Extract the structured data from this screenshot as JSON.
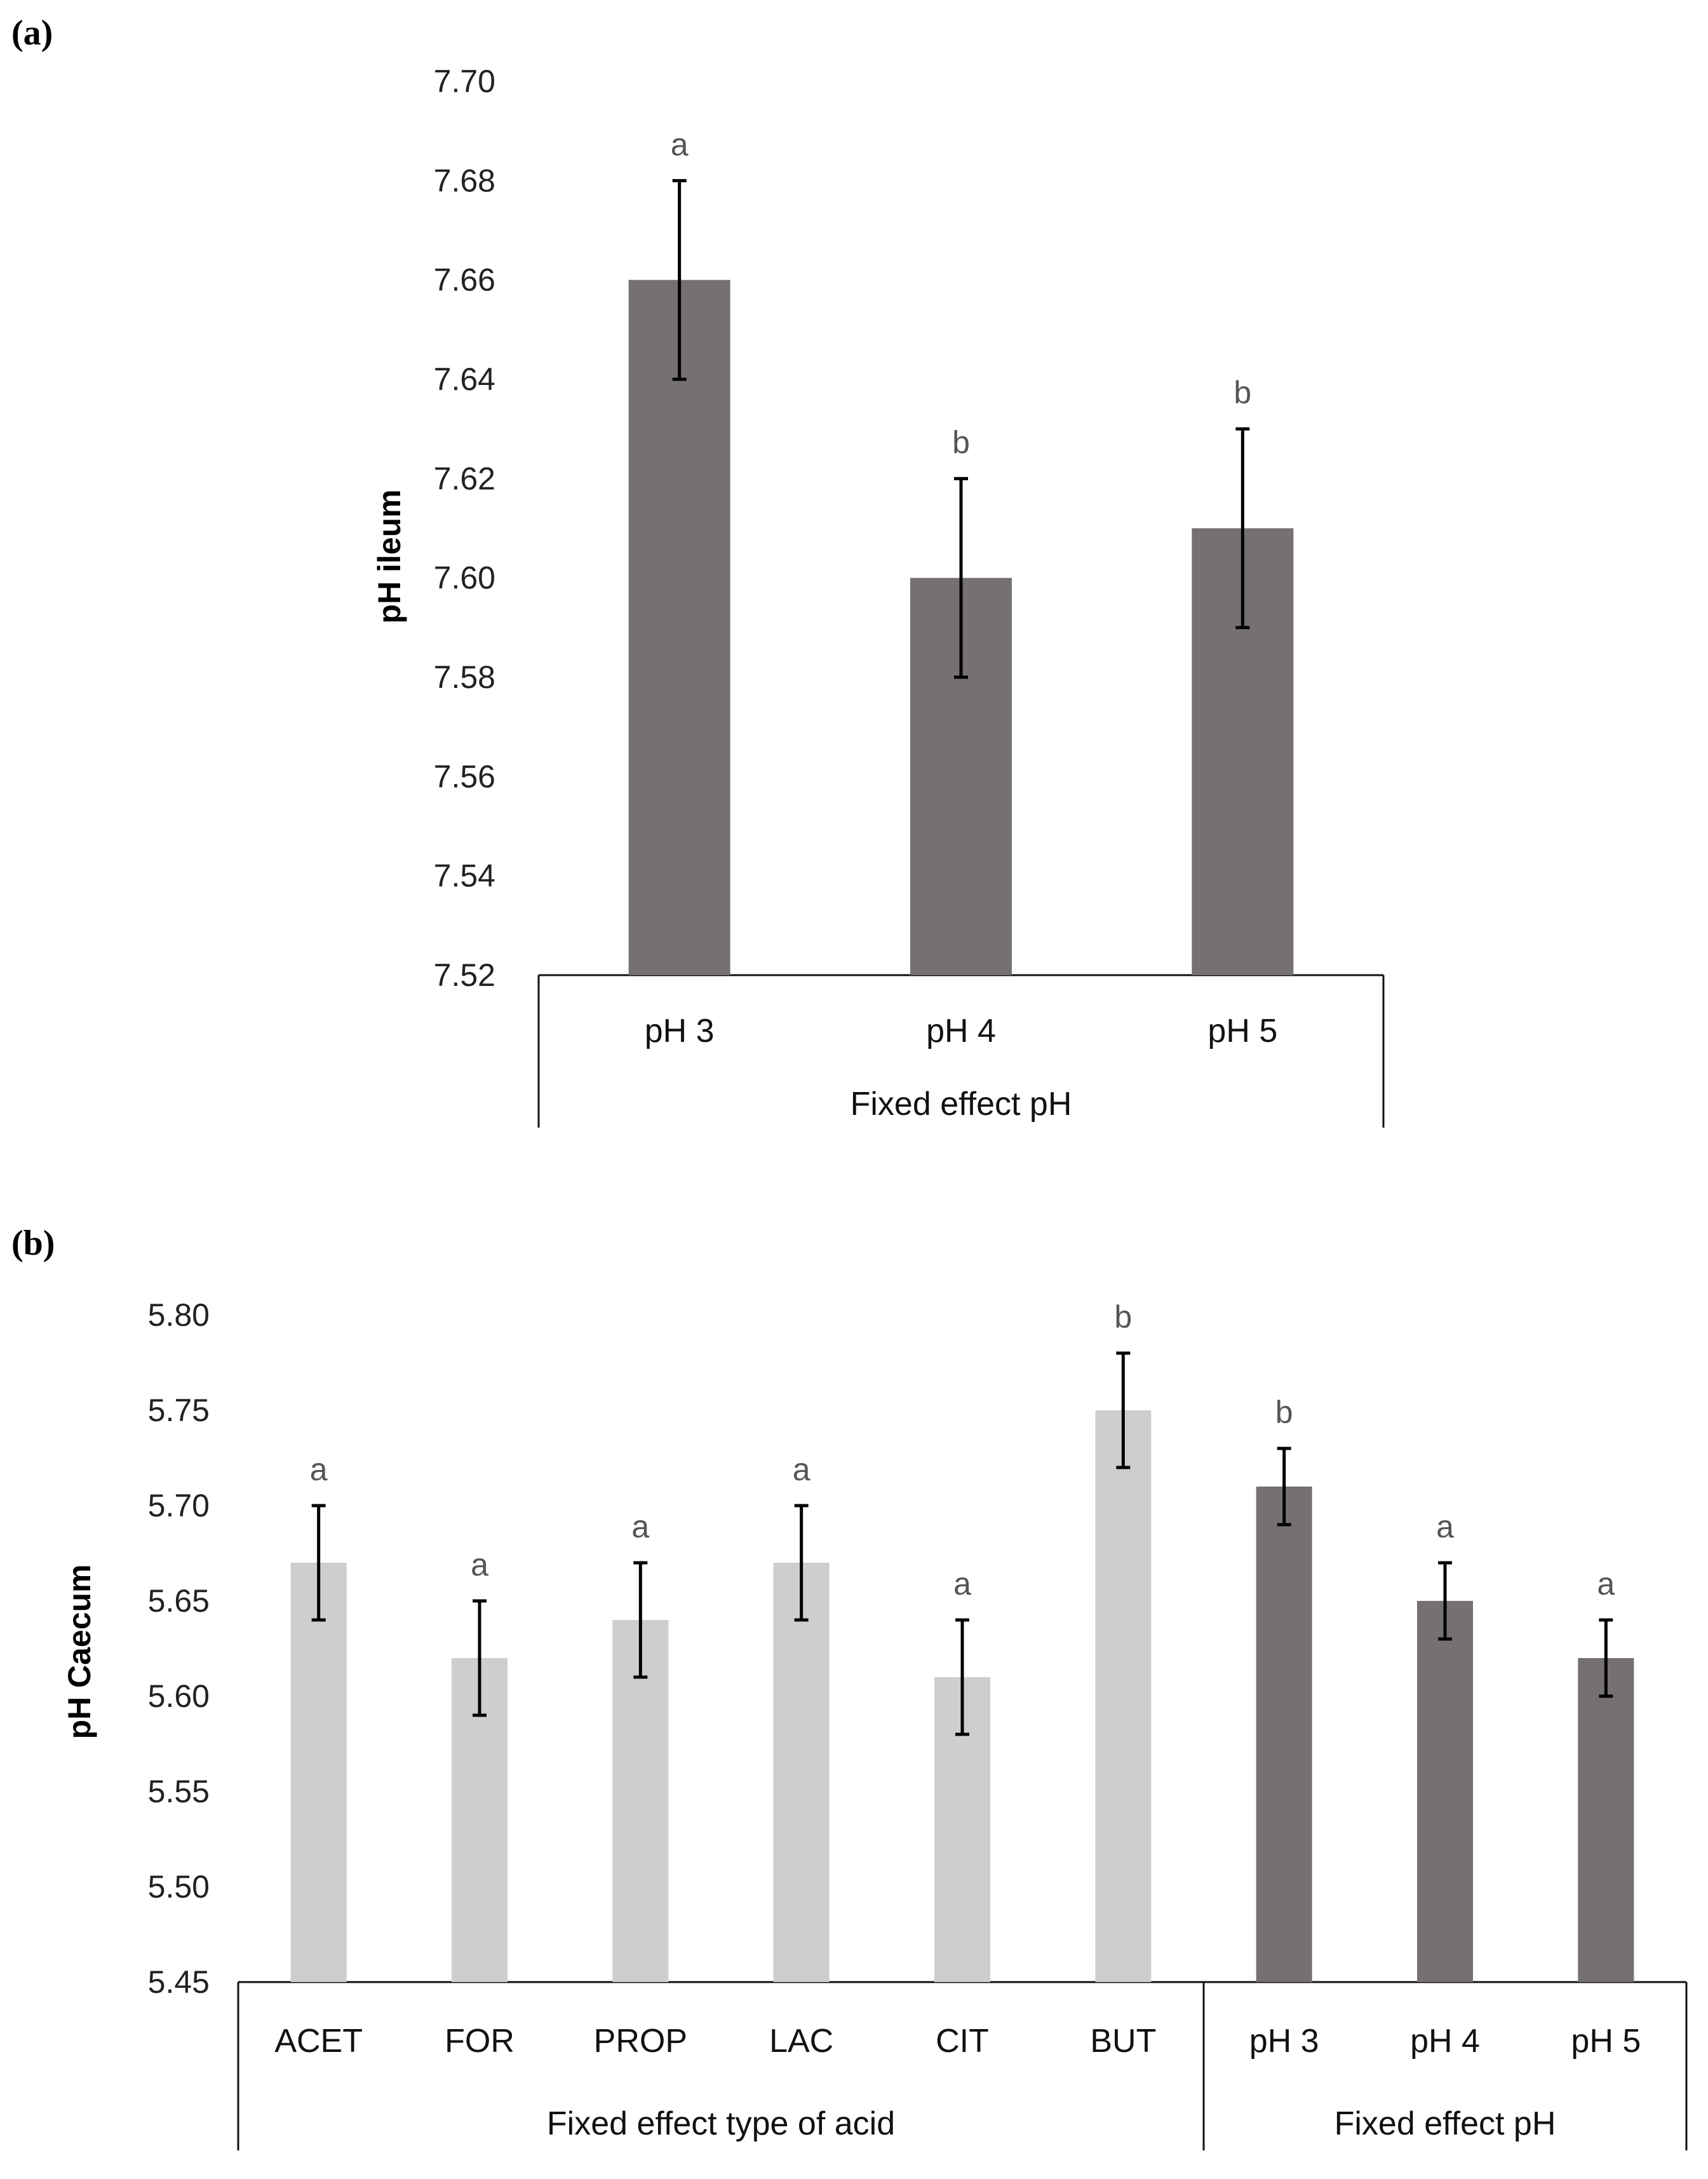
{
  "chart_data": [
    {
      "panel": "(a)",
      "type": "bar",
      "ylabel": "pH ileum",
      "ylim": [
        7.52,
        7.7
      ],
      "yticks": [
        "7.70",
        "7.68",
        "7.66",
        "7.64",
        "7.62",
        "7.60",
        "7.58",
        "7.56",
        "7.54",
        "7.52"
      ],
      "ytick_values": [
        7.7,
        7.68,
        7.66,
        7.64,
        7.62,
        7.6,
        7.58,
        7.56,
        7.54,
        7.52
      ],
      "groups": [
        {
          "label": "Fixed effect pH",
          "categories": [
            "pH 3",
            "pH 4",
            "pH 5"
          ]
        }
      ],
      "categories": [
        "pH 3",
        "pH 4",
        "pH 5"
      ],
      "values": [
        7.66,
        7.6,
        7.61
      ],
      "errors": [
        0.02,
        0.02,
        0.02
      ],
      "letters": [
        "a",
        "b",
        "b"
      ],
      "bar_colors": [
        "#767171",
        "#767171",
        "#767171"
      ]
    },
    {
      "panel": "(b)",
      "type": "bar",
      "ylabel": "pH Caecum",
      "ylim": [
        5.45,
        5.8
      ],
      "yticks": [
        "5.80",
        "5.75",
        "5.70",
        "5.65",
        "5.60",
        "5.55",
        "5.50",
        "5.45"
      ],
      "ytick_values": [
        5.8,
        5.75,
        5.7,
        5.65,
        5.6,
        5.55,
        5.5,
        5.45
      ],
      "groups": [
        {
          "label": "Fixed effect type of acid",
          "categories": [
            "ACET",
            "FOR",
            "PROP",
            "LAC",
            "CIT",
            "BUT"
          ]
        },
        {
          "label": "Fixed effect pH",
          "categories": [
            "pH 3",
            "pH 4",
            "pH 5"
          ]
        }
      ],
      "categories": [
        "ACET",
        "FOR",
        "PROP",
        "LAC",
        "CIT",
        "BUT",
        "pH 3",
        "pH 4",
        "pH 5"
      ],
      "values": [
        5.67,
        5.62,
        5.64,
        5.67,
        5.61,
        5.75,
        5.71,
        5.65,
        5.62
      ],
      "errors": [
        0.03,
        0.03,
        0.03,
        0.03,
        0.03,
        0.03,
        0.02,
        0.02,
        0.02
      ],
      "letters": [
        "a",
        "a",
        "a",
        "a",
        "a",
        "b",
        "b",
        "a",
        "a"
      ],
      "bar_colors": [
        "#d0cecd",
        "#d0cecd",
        "#d0cecd",
        "#d0cecd",
        "#d0cecd",
        "#d0cecd",
        "#767171",
        "#767171",
        "#767171"
      ]
    }
  ]
}
